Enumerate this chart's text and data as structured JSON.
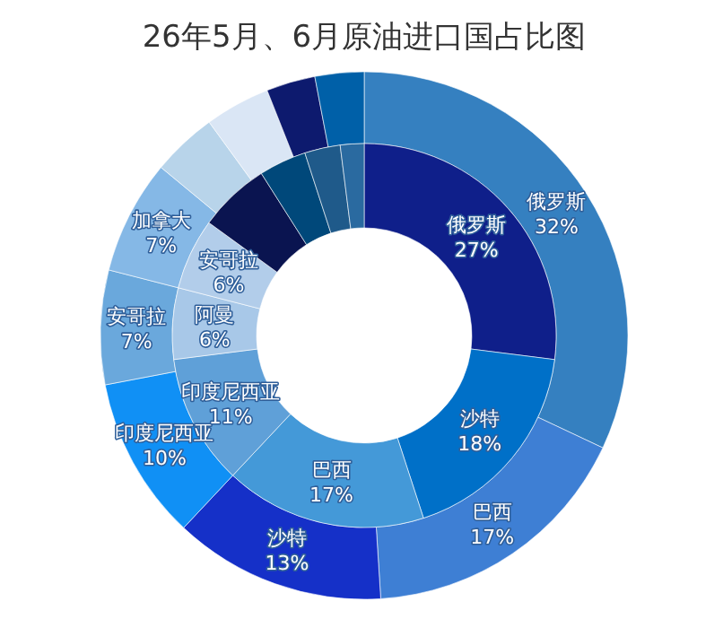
{
  "chart_data": [
    {
      "type": "donut",
      "title": "26年5月、6月原油进口国占比图",
      "categories": [
        "俄罗斯",
        "巴西",
        "沙特",
        "印度尼西亚",
        "安哥拉",
        "加拿大",
        null,
        null,
        null,
        null
      ],
      "values": [
        32,
        17,
        13,
        10,
        7,
        7,
        4,
        4,
        3,
        3
      ],
      "value_labels": [
        "32%",
        "17%",
        "13%",
        "10%",
        "7%",
        "7%",
        null,
        null,
        null,
        null
      ],
      "colors": [
        "#3580c0",
        "#3e7fd4",
        "#1530c8",
        "#1090f5",
        "#6aa8dc",
        "#85b8e6",
        "#b8d4ea",
        "#dae6f5",
        "#0d1a6e",
        "#0060a8"
      ]
    },
    {
      "type": "donut",
      "categories": [
        "俄罗斯",
        "沙特",
        "巴西",
        "印度尼西亚",
        "阿曼",
        "安哥拉",
        null,
        null,
        null,
        null
      ],
      "values": [
        27,
        18,
        17,
        11,
        6,
        6,
        6,
        4,
        3,
        2
      ],
      "value_labels": [
        "27%",
        "18%",
        "17%",
        "11%",
        "6%",
        "6%",
        null,
        null,
        null,
        null
      ],
      "colors": [
        "#0f1f8a",
        "#0070c8",
        "#4499d8",
        "#5fa0d8",
        "#a8c8e8",
        "#b2cdea",
        "#0a1450",
        "#00487a",
        "#1f5a8a",
        "#2a6aa0"
      ]
    }
  ]
}
